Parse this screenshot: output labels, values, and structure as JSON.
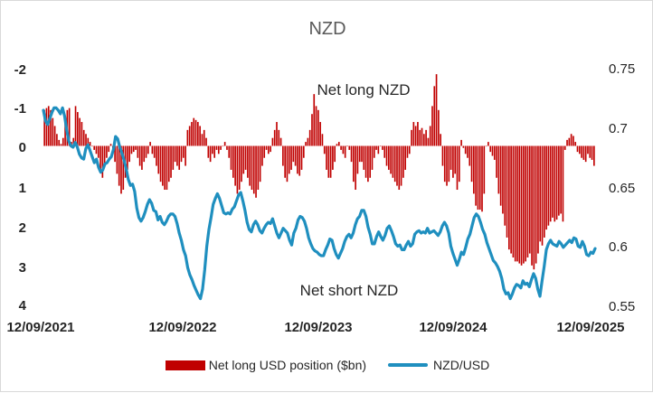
{
  "chart_data": {
    "type": "bar+line",
    "title": "NZD",
    "left_axis": {
      "ticks": [
        "-2",
        "-1",
        "0",
        "1",
        "2",
        "3",
        "4"
      ],
      "range": [
        -2,
        4
      ],
      "inverted": true
    },
    "right_axis": {
      "ticks": [
        "0.75",
        "0.7",
        "0.65",
        "0.6",
        "0.55"
      ],
      "range": [
        0.55,
        0.75
      ]
    },
    "x_ticks": [
      "12/09/2021",
      "12/09/2022",
      "12/09/2023",
      "12/09/2024",
      "12/09/2025"
    ],
    "annotations": {
      "top": "Net long NZD",
      "bottom": "Net short NZD"
    },
    "legend": {
      "bars": "Net long USD position ($bn)",
      "line": "NZD/USD"
    },
    "colors": {
      "bars": "#c00000",
      "line": "#1f8fbf"
    },
    "bar_series": {
      "name": "Net long USD position ($bn)",
      "values": [
        -0.9,
        -0.95,
        -1.0,
        -0.9,
        -0.7,
        -0.5,
        -0.3,
        -0.15,
        -0.05,
        -0.2,
        -0.7,
        -0.9,
        -0.95,
        -0.1,
        -0.2,
        -1.0,
        -0.85,
        -0.7,
        -0.6,
        -0.4,
        -0.3,
        -0.2,
        -0.1,
        0.0,
        0.1,
        0.2,
        0.3,
        0.6,
        0.8,
        0.5,
        0.3,
        0.15,
        -0.05,
        0.1,
        0.4,
        0.7,
        1.0,
        1.2,
        1.1,
        0.8,
        0.6,
        0.4,
        0.2,
        0.15,
        0.1,
        0.3,
        0.5,
        0.6,
        0.4,
        0.3,
        0.2,
        -0.1,
        0.2,
        0.3,
        0.5,
        0.7,
        0.9,
        1.0,
        1.1,
        1.1,
        0.9,
        0.8,
        0.6,
        0.4,
        0.5,
        0.6,
        0.4,
        0.3,
        0.5,
        -0.4,
        -0.5,
        -0.6,
        -0.7,
        -0.65,
        -0.6,
        -0.5,
        -0.3,
        -0.4,
        -0.2,
        0.3,
        0.4,
        0.2,
        0.3,
        0.1,
        0.2,
        0.1,
        0.0,
        -0.1,
        0.1,
        0.3,
        0.6,
        0.8,
        1.0,
        1.2,
        1.1,
        0.9,
        0.7,
        0.6,
        0.8,
        1.0,
        1.1,
        1.2,
        1.3,
        1.1,
        0.9,
        0.5,
        0.3,
        0.1,
        0.2,
        0.15,
        -0.2,
        -0.4,
        -0.6,
        -0.4,
        -0.2,
        0.5,
        0.8,
        0.9,
        0.7,
        0.6,
        0.4,
        0.5,
        0.7,
        0.75,
        0.6,
        0.3,
        -0.1,
        -0.2,
        -0.4,
        -0.8,
        -1.3,
        -1.0,
        -0.9,
        -0.6,
        -0.3,
        0.2,
        0.6,
        0.8,
        0.8,
        0.6,
        0.4,
        -0.05,
        -0.1,
        0.1,
        0.2,
        0.3,
        0.0,
        0.1,
        0.4,
        0.9,
        1.1,
        0.7,
        0.4,
        0.4,
        0.6,
        0.8,
        0.9,
        0.8,
        0.6,
        0.3,
        0.1,
        0.2,
        0.0,
        0.1,
        0.3,
        0.5,
        0.6,
        0.7,
        0.8,
        0.9,
        1.0,
        1.1,
        1.0,
        0.8,
        0.6,
        0.3,
        0.2,
        -0.4,
        -0.6,
        -0.5,
        -0.6,
        -0.4,
        -0.45,
        -0.3,
        -0.4,
        -0.2,
        -0.5,
        -1.0,
        -1.5,
        -1.8,
        -0.9,
        -0.3,
        0.5,
        0.9,
        1.0,
        0.9,
        0.6,
        0.8,
        0.7,
        1.1,
        0.9,
        -0.15,
        0.05,
        0.2,
        0.3,
        0.5,
        0.9,
        1.2,
        1.5,
        1.6,
        1.6,
        1.65,
        1.2,
        0.0,
        -0.1,
        0.15,
        0.25,
        0.35,
        0.8,
        1.2,
        1.5,
        1.7,
        2.0,
        2.3,
        2.6,
        2.7,
        2.8,
        2.9,
        2.9,
        2.95,
        3.0,
        2.95,
        2.9,
        2.8,
        2.7,
        3.0,
        3.1,
        2.95,
        2.7,
        2.4,
        2.5,
        2.3,
        2.1,
        2.0,
        1.9,
        1.8,
        1.9,
        1.85,
        1.75,
        1.7,
        1.9,
        0.1,
        -0.15,
        -0.2,
        -0.3,
        -0.25,
        -0.1,
        0.15,
        0.2,
        0.3,
        0.35,
        0.4,
        0.2,
        0.3,
        0.35,
        0.5
      ]
    },
    "line_series": {
      "name": "NZD/USD",
      "values": [
        0.714,
        0.705,
        0.702,
        0.707,
        0.712,
        0.716,
        0.716,
        0.714,
        0.711,
        0.716,
        0.709,
        0.697,
        0.688,
        0.684,
        0.683,
        0.687,
        0.683,
        0.677,
        0.674,
        0.673,
        0.682,
        0.685,
        0.68,
        0.675,
        0.67,
        0.673,
        0.666,
        0.662,
        0.664,
        0.669,
        0.67,
        0.673,
        0.675,
        0.681,
        0.692,
        0.69,
        0.683,
        0.678,
        0.672,
        0.665,
        0.656,
        0.651,
        0.652,
        0.646,
        0.632,
        0.624,
        0.621,
        0.624,
        0.629,
        0.635,
        0.639,
        0.636,
        0.63,
        0.629,
        0.622,
        0.625,
        0.62,
        0.618,
        0.621,
        0.625,
        0.627,
        0.627,
        0.625,
        0.619,
        0.611,
        0.605,
        0.597,
        0.592,
        0.582,
        0.576,
        0.572,
        0.567,
        0.563,
        0.559,
        0.556,
        0.564,
        0.58,
        0.6,
        0.614,
        0.624,
        0.635,
        0.64,
        0.644,
        0.64,
        0.634,
        0.628,
        0.627,
        0.628,
        0.627,
        0.631,
        0.633,
        0.638,
        0.643,
        0.645,
        0.638,
        0.63,
        0.62,
        0.614,
        0.612,
        0.618,
        0.621,
        0.618,
        0.613,
        0.611,
        0.615,
        0.618,
        0.62,
        0.619,
        0.623,
        0.617,
        0.611,
        0.607,
        0.611,
        0.615,
        0.613,
        0.611,
        0.605,
        0.601,
        0.611,
        0.615,
        0.622,
        0.625,
        0.624,
        0.621,
        0.615,
        0.607,
        0.602,
        0.598,
        0.596,
        0.595,
        0.593,
        0.592,
        0.592,
        0.597,
        0.601,
        0.606,
        0.605,
        0.598,
        0.593,
        0.59,
        0.594,
        0.598,
        0.604,
        0.608,
        0.61,
        0.607,
        0.611,
        0.618,
        0.623,
        0.625,
        0.63,
        0.63,
        0.625,
        0.616,
        0.61,
        0.602,
        0.602,
        0.608,
        0.612,
        0.608,
        0.605,
        0.609,
        0.615,
        0.617,
        0.613,
        0.608,
        0.602,
        0.6,
        0.601,
        0.597,
        0.597,
        0.601,
        0.604,
        0.6,
        0.602,
        0.61,
        0.612,
        0.613,
        0.611,
        0.612,
        0.611,
        0.615,
        0.611,
        0.612,
        0.613,
        0.611,
        0.609,
        0.612,
        0.617,
        0.62,
        0.617,
        0.611,
        0.6,
        0.594,
        0.589,
        0.584,
        0.589,
        0.595,
        0.593,
        0.599,
        0.606,
        0.61,
        0.617,
        0.624,
        0.627,
        0.625,
        0.62,
        0.614,
        0.61,
        0.603,
        0.598,
        0.593,
        0.588,
        0.586,
        0.583,
        0.579,
        0.573,
        0.564,
        0.56,
        0.561,
        0.556,
        0.56,
        0.565,
        0.568,
        0.567,
        0.565,
        0.571,
        0.568,
        0.569,
        0.566,
        0.572,
        0.577,
        0.573,
        0.564,
        0.558,
        0.571,
        0.583,
        0.597,
        0.602,
        0.605,
        0.602,
        0.601,
        0.6,
        0.604,
        0.602,
        0.599,
        0.601,
        0.603,
        0.605,
        0.603,
        0.607,
        0.606,
        0.6,
        0.599,
        0.604,
        0.6,
        0.593,
        0.592,
        0.595,
        0.594,
        0.598
      ]
    }
  }
}
